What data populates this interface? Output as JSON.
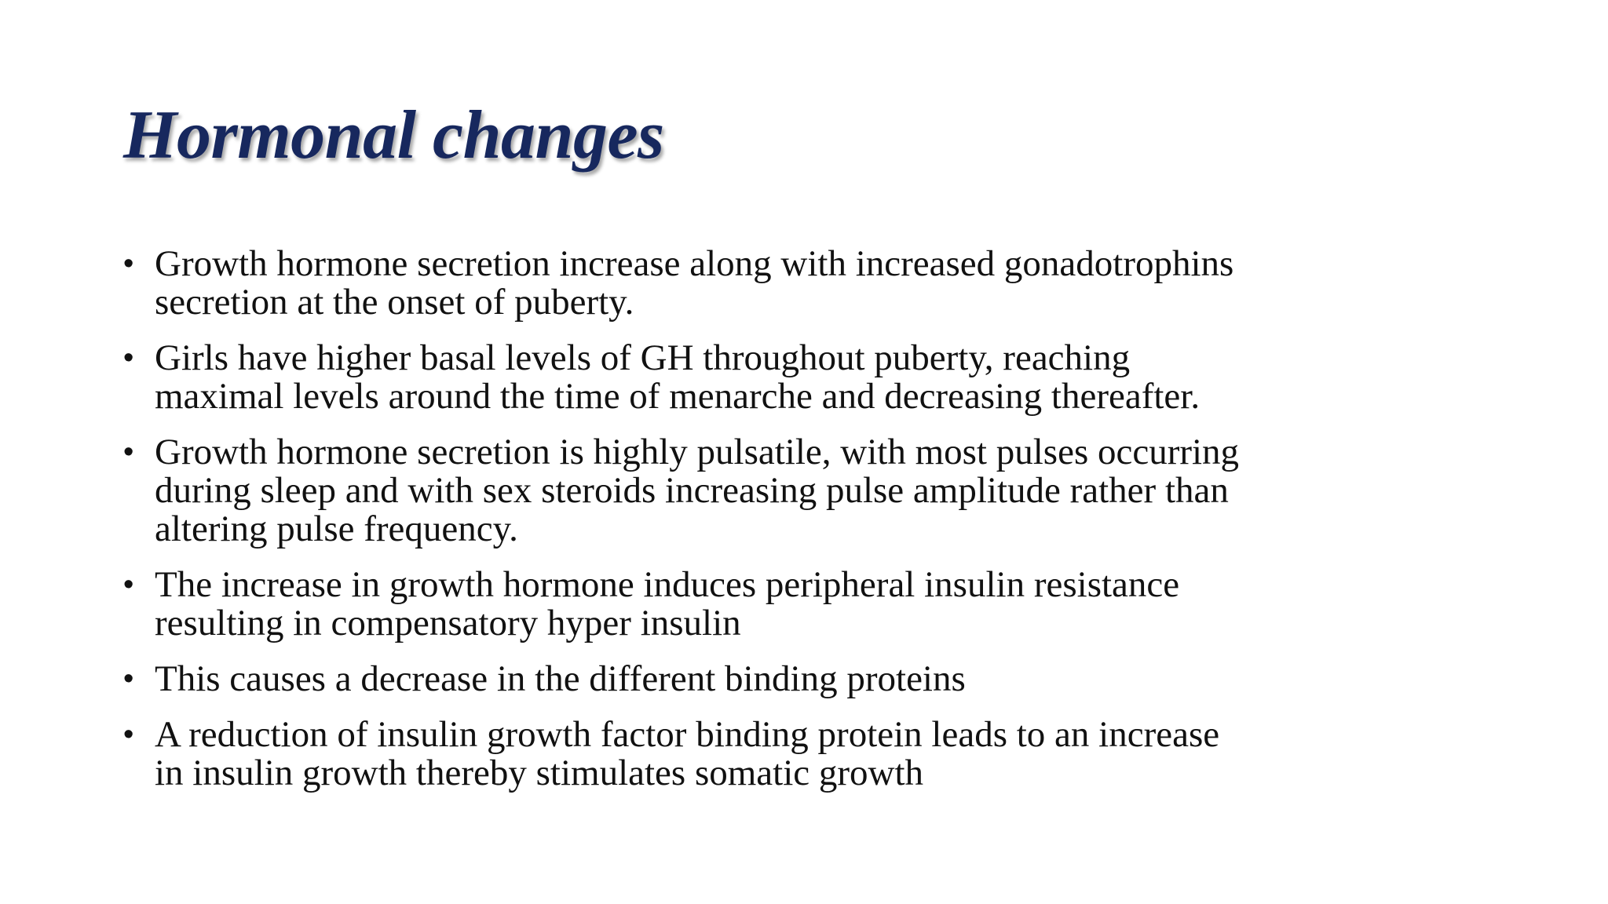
{
  "slide": {
    "title": "Hormonal changes",
    "bullet_symbol": "•",
    "bullets": [
      {
        "line1": "Growth hormone secretion increase along with increased gonadotrophins",
        "line2": "secretion at the onset of puberty."
      },
      {
        "line1": "Girls have higher basal levels of GH throughout puberty, reaching",
        "line2": "maximal levels around the time of menarche and decreasing thereafter."
      },
      {
        "line1": "Growth hormone secretion is highly pulsatile, with most pulses occurring",
        "line2": "during sleep and with sex steroids increasing pulse amplitude rather than",
        "line3": "altering pulse frequency."
      },
      {
        "line1": "The increase in growth hormone induces peripheral insulin resistance",
        "line2": "resulting in compensatory hyper insulin"
      },
      {
        "line1": "This causes a decrease in the different binding proteins"
      },
      {
        "line1": "A reduction of insulin growth factor binding protein leads to an increase",
        "line2": "in insulin growth thereby stimulates somatic growth"
      }
    ]
  },
  "colors": {
    "title": "#17285e",
    "text": "#111111",
    "background": "#ffffff"
  }
}
